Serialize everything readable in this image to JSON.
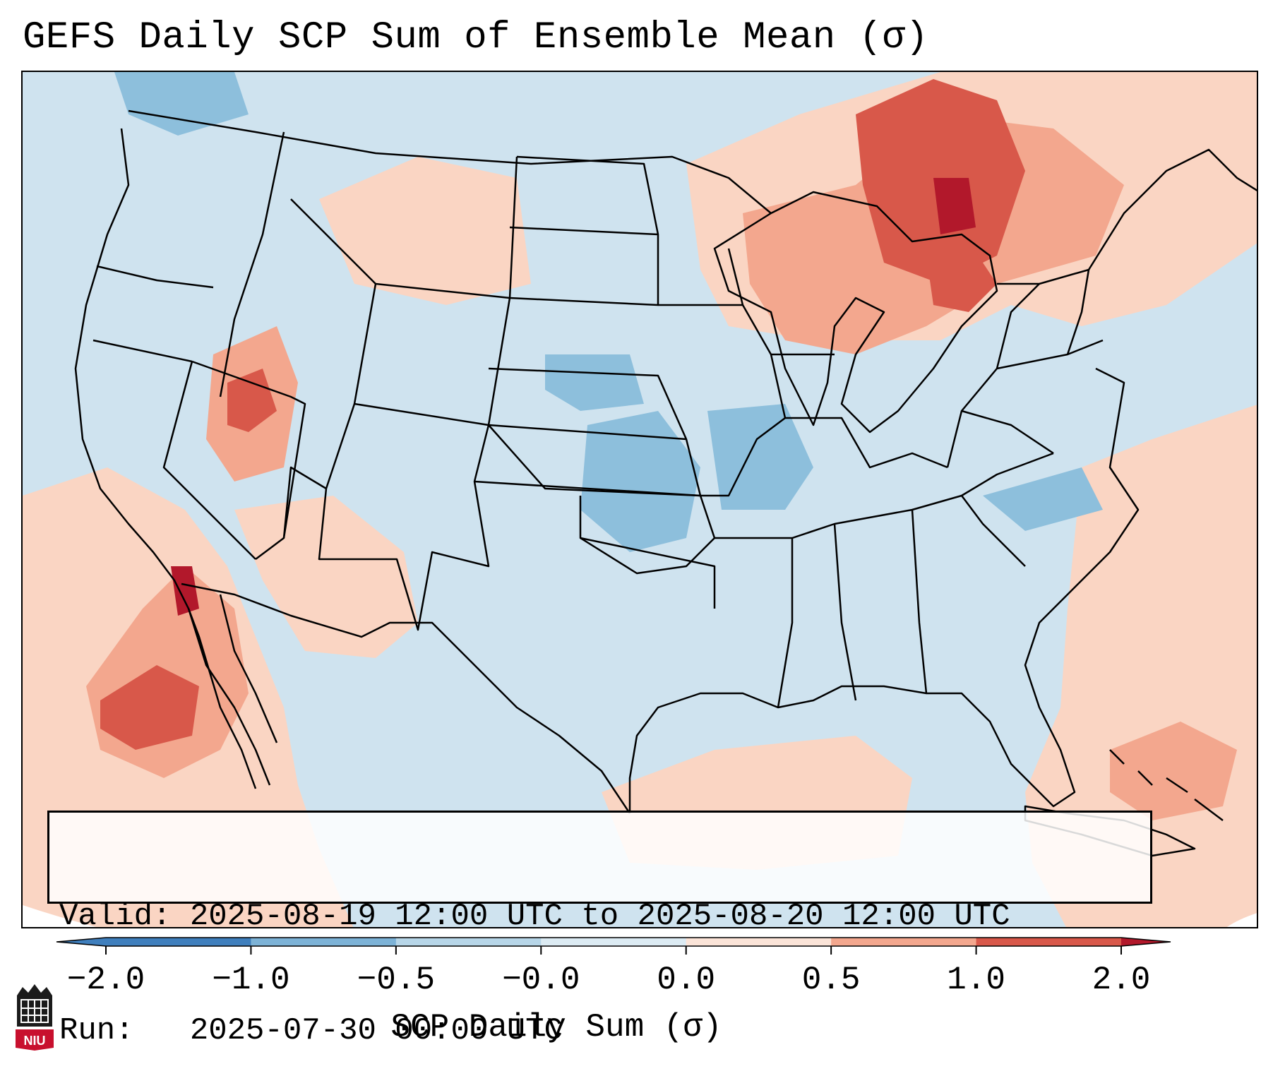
{
  "title": "GEFS Daily SCP Sum of Ensemble Mean (σ)",
  "map": {
    "region": "Continental United States",
    "variable": "SCP Daily Sum of Ensemble Mean",
    "units": "σ",
    "features": [
      "state-borders",
      "coastlines",
      "great-lakes",
      "mexico",
      "cuba",
      "bahamas"
    ]
  },
  "info": {
    "valid_line": "Valid: 2025-08-19 12:00 UTC to 2025-08-20 12:00 UTC",
    "run_line": "Run:   2025-07-30 00:00 UTC"
  },
  "colorbar": {
    "title": "SCP Daily Sum (σ)",
    "ticks": [
      "−2.0",
      "−1.0",
      "−0.5",
      "−0.0",
      "0.0",
      "0.5",
      "1.0",
      "2.0"
    ],
    "colors": [
      "#3f7fbd",
      "#7db3d7",
      "#b7d6e8",
      "#dcebf3",
      "#fbe4d8",
      "#f3a78e",
      "#d8584a",
      "#b2182b"
    ],
    "extend": "both"
  },
  "logo": {
    "text": "NIU"
  }
}
